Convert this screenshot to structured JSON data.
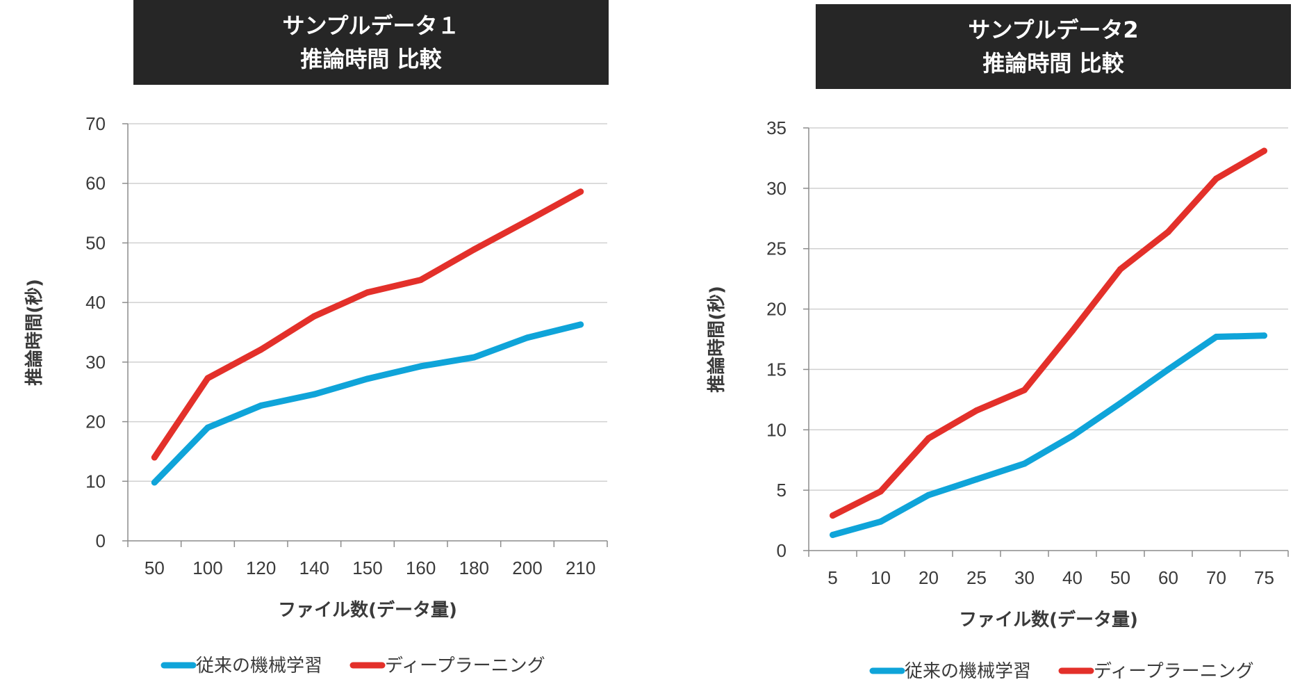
{
  "chart_data": [
    {
      "type": "line",
      "title": "サンプルデータ１",
      "subtitle": "推論時間 比較",
      "xlabel": "ファイル数(データ量)",
      "ylabel": "推論時間(秒)",
      "categories": [
        "50",
        "100",
        "120",
        "140",
        "150",
        "160",
        "180",
        "200",
        "210"
      ],
      "ylim": [
        0,
        70
      ],
      "yticks": [
        "0",
        "10",
        "20",
        "30",
        "40",
        "50",
        "60",
        "70"
      ],
      "grid": true,
      "legend_position": "bottom",
      "series": [
        {
          "name": "従来の機械学習",
          "color": "#0fa4d9",
          "values": [
            9.8,
            19,
            22.7,
            24.6,
            27.2,
            29.3,
            30.8,
            34.1,
            36.3
          ]
        },
        {
          "name": "ディープラーニング",
          "color": "#e3302a",
          "values": [
            14,
            27.3,
            32.1,
            37.7,
            41.7,
            43.8,
            48.9,
            53.7,
            58.6
          ]
        }
      ]
    },
    {
      "type": "line",
      "title": "サンプルデータ2",
      "subtitle": "推論時間 比較",
      "xlabel": "ファイル数(データ量)",
      "ylabel": "推論時間(秒)",
      "categories": [
        "5",
        "10",
        "20",
        "25",
        "30",
        "40",
        "50",
        "60",
        "70",
        "75"
      ],
      "ylim": [
        0,
        35
      ],
      "yticks": [
        "0",
        "5",
        "10",
        "15",
        "20",
        "25",
        "30",
        "35"
      ],
      "grid": true,
      "legend_position": "bottom",
      "series": [
        {
          "name": "従来の機械学習",
          "color": "#0fa4d9",
          "values": [
            1.3,
            2.4,
            4.6,
            5.9,
            7.2,
            9.5,
            12.2,
            15,
            17.7,
            17.8
          ]
        },
        {
          "name": "ディープラーニング",
          "color": "#e3302a",
          "values": [
            2.9,
            4.9,
            9.3,
            11.6,
            13.3,
            18.2,
            23.3,
            26.4,
            30.8,
            33.1
          ]
        }
      ]
    }
  ]
}
